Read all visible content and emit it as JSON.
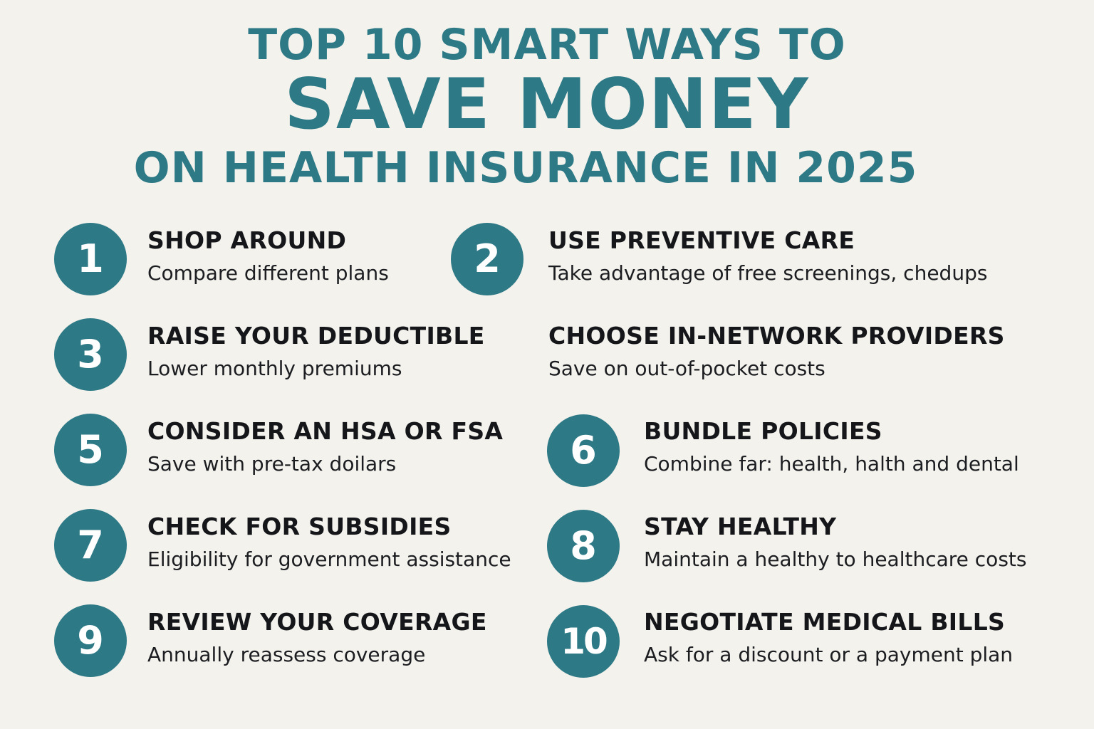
{
  "title": {
    "line1": "TOP 10 SMART WAYS TO",
    "line2": "SAVE MONEY",
    "line3": "ON HEALTH INSURANCE IN 2025"
  },
  "colors": {
    "accent": "#2d7a86",
    "background": "#f4f2ed",
    "text": "#14161a",
    "badge_text": "#ffffff"
  },
  "tips": [
    {
      "number": "1",
      "heading": "SHOP AROUND",
      "description": "Compare different plans"
    },
    {
      "number": "2",
      "heading": "USE PREVENTIVE CARE",
      "description": "Take advantage of free screenings, chedups"
    },
    {
      "number": "3",
      "heading": "RAISE YOUR DEDUCTIBLE",
      "description": "Lower monthly premiums"
    },
    {
      "heading": "CHOOSE IN-NETWORK PROVIDERS",
      "description": "Save on out-of-pocket costs"
    },
    {
      "number": "5",
      "heading": "CONSIDER AN HSA OR FSA",
      "description": "Save with pre-tax doilars"
    },
    {
      "number": "6",
      "heading": "BUNDLE POLICIES",
      "description": "Combine far: health, halth and dental"
    },
    {
      "number": "7",
      "heading": "CHECK FOR SUBSIDIES",
      "description": "Eligibility for government assistance"
    },
    {
      "number": "8",
      "heading": "STAY HEALTHY",
      "description": "Maintain a healthy to healthcare costs"
    },
    {
      "number": "9",
      "heading": "REVIEW YOUR COVERAGE",
      "description": "Annually reassess coverage"
    },
    {
      "number": "10",
      "heading": "NEGOTIATE MEDICAL BILLS",
      "description": "Ask for a discount or a payment plan"
    }
  ]
}
